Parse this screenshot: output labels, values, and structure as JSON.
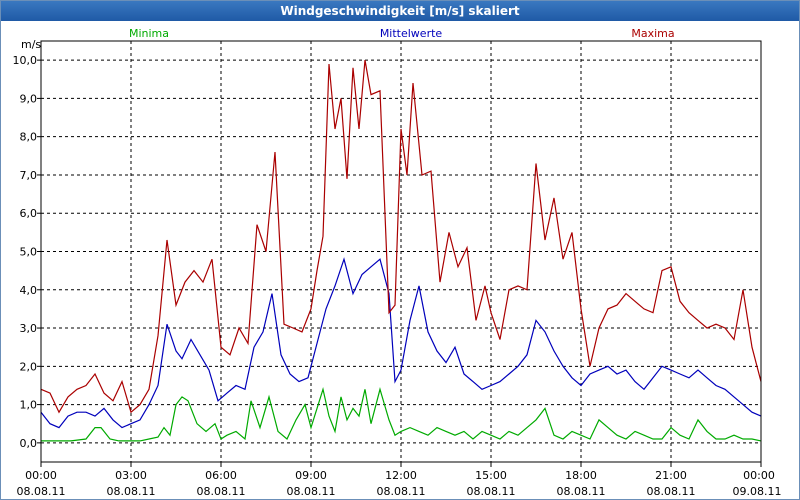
{
  "chart_data": {
    "type": "line",
    "title": "Windgeschwindigkeit [m/s] skaliert",
    "ylabel": "m/s",
    "ylim": [
      -0.5,
      10.5
    ],
    "yticks": [
      0,
      1,
      2,
      3,
      4,
      5,
      6,
      7,
      8,
      9,
      10
    ],
    "ytick_labels": [
      "0,0",
      "1,0",
      "2,0",
      "3,0",
      "4,0",
      "5,0",
      "6,0",
      "7,0",
      "8,0",
      "9,0",
      "10,0"
    ],
    "xlim": [
      0,
      24
    ],
    "xticks": [
      {
        "value": 0,
        "time": "00:00",
        "date": "08.08.11"
      },
      {
        "value": 3,
        "time": "03:00",
        "date": "08.08.11"
      },
      {
        "value": 6,
        "time": "06:00",
        "date": "08.08.11"
      },
      {
        "value": 9,
        "time": "09:00",
        "date": "08.08.11"
      },
      {
        "value": 12,
        "time": "12:00",
        "date": "08.08.11"
      },
      {
        "value": 15,
        "time": "15:00",
        "date": "08.08.11"
      },
      {
        "value": 18,
        "time": "18:00",
        "date": "08.08.11"
      },
      {
        "value": 21,
        "time": "21:00",
        "date": "08.08.11"
      },
      {
        "value": 24,
        "time": "00:00",
        "date": "09.08.11"
      }
    ],
    "series": [
      {
        "name": "Minima",
        "color": "#00aa00",
        "x": [
          0,
          0.5,
          1,
          1.5,
          1.8,
          2,
          2.3,
          2.6,
          3,
          3.3,
          3.6,
          3.9,
          4.1,
          4.3,
          4.5,
          4.7,
          4.9,
          5.2,
          5.5,
          5.8,
          6,
          6.2,
          6.5,
          6.8,
          7,
          7.3,
          7.6,
          7.9,
          8.2,
          8.5,
          8.8,
          9,
          9.2,
          9.4,
          9.6,
          9.8,
          10,
          10.2,
          10.4,
          10.6,
          10.8,
          11,
          11.3,
          11.6,
          11.8,
          12,
          12.3,
          12.6,
          12.9,
          13.2,
          13.5,
          13.8,
          14.1,
          14.4,
          14.7,
          15,
          15.3,
          15.6,
          15.9,
          16.2,
          16.5,
          16.8,
          17.1,
          17.4,
          17.7,
          18,
          18.3,
          18.6,
          18.9,
          19.2,
          19.5,
          19.8,
          20.1,
          20.4,
          20.7,
          21,
          21.3,
          21.6,
          21.9,
          22.2,
          22.5,
          22.8,
          23.1,
          23.4,
          23.7,
          24
        ],
        "values": [
          0.05,
          0.05,
          0.05,
          0.1,
          0.4,
          0.4,
          0.1,
          0.05,
          0.05,
          0.05,
          0.1,
          0.15,
          0.4,
          0.2,
          1.0,
          1.2,
          1.1,
          0.5,
          0.3,
          0.5,
          0.1,
          0.2,
          0.3,
          0.1,
          1.1,
          0.4,
          1.2,
          0.3,
          0.1,
          0.6,
          1.0,
          0.4,
          0.9,
          1.4,
          0.7,
          0.3,
          1.2,
          0.6,
          0.9,
          0.7,
          1.4,
          0.5,
          1.4,
          0.6,
          0.2,
          0.3,
          0.4,
          0.3,
          0.2,
          0.4,
          0.3,
          0.2,
          0.3,
          0.1,
          0.3,
          0.2,
          0.1,
          0.3,
          0.2,
          0.4,
          0.6,
          0.9,
          0.2,
          0.1,
          0.3,
          0.2,
          0.1,
          0.6,
          0.4,
          0.2,
          0.1,
          0.3,
          0.2,
          0.1,
          0.1,
          0.4,
          0.2,
          0.1,
          0.6,
          0.3,
          0.1,
          0.1,
          0.2,
          0.1,
          0.1,
          0.05
        ]
      },
      {
        "name": "Mittelwerte",
        "color": "#0000bb",
        "x": [
          0,
          0.3,
          0.6,
          0.9,
          1.2,
          1.5,
          1.8,
          2.1,
          2.4,
          2.7,
          3,
          3.3,
          3.6,
          3.9,
          4.2,
          4.5,
          4.7,
          5,
          5.3,
          5.6,
          5.9,
          6.2,
          6.5,
          6.8,
          7.1,
          7.4,
          7.7,
          8,
          8.3,
          8.6,
          8.9,
          9.2,
          9.5,
          9.8,
          10.1,
          10.4,
          10.7,
          11,
          11.3,
          11.6,
          11.8,
          12,
          12.3,
          12.6,
          12.9,
          13.2,
          13.5,
          13.8,
          14.1,
          14.4,
          14.7,
          15,
          15.3,
          15.6,
          15.9,
          16.2,
          16.5,
          16.8,
          17.1,
          17.4,
          17.7,
          18,
          18.3,
          18.6,
          18.9,
          19.2,
          19.5,
          19.8,
          20.1,
          20.4,
          20.7,
          21,
          21.3,
          21.6,
          21.9,
          22.2,
          22.5,
          22.8,
          23.1,
          23.4,
          23.7,
          24
        ],
        "values": [
          0.8,
          0.5,
          0.4,
          0.7,
          0.8,
          0.8,
          0.7,
          0.9,
          0.6,
          0.4,
          0.5,
          0.6,
          1.0,
          1.5,
          3.1,
          2.4,
          2.2,
          2.7,
          2.3,
          1.9,
          1.1,
          1.3,
          1.5,
          1.4,
          2.5,
          2.9,
          3.9,
          2.3,
          1.8,
          1.6,
          1.7,
          2.6,
          3.5,
          4.1,
          4.8,
          3.9,
          4.4,
          4.6,
          4.8,
          3.9,
          1.6,
          1.9,
          3.2,
          4.1,
          2.9,
          2.4,
          2.1,
          2.5,
          1.8,
          1.6,
          1.4,
          1.5,
          1.6,
          1.8,
          2.0,
          2.3,
          3.2,
          2.9,
          2.4,
          2.0,
          1.7,
          1.5,
          1.8,
          1.9,
          2.0,
          1.8,
          1.9,
          1.6,
          1.4,
          1.7,
          2.0,
          1.9,
          1.8,
          1.7,
          1.9,
          1.7,
          1.5,
          1.4,
          1.2,
          1.0,
          0.8,
          0.7
        ]
      },
      {
        "name": "Maxima",
        "color": "#aa0000",
        "x": [
          0,
          0.3,
          0.6,
          0.9,
          1.2,
          1.5,
          1.8,
          2.1,
          2.4,
          2.7,
          3,
          3.3,
          3.6,
          3.9,
          4.2,
          4.5,
          4.8,
          5.1,
          5.4,
          5.7,
          6,
          6.3,
          6.6,
          6.9,
          7.2,
          7.5,
          7.8,
          8.1,
          8.4,
          8.7,
          9,
          9.2,
          9.4,
          9.6,
          9.8,
          10,
          10.2,
          10.4,
          10.6,
          10.8,
          11,
          11.3,
          11.6,
          11.8,
          12,
          12.2,
          12.4,
          12.7,
          13,
          13.3,
          13.6,
          13.9,
          14.2,
          14.5,
          14.8,
          15,
          15.3,
          15.6,
          15.9,
          16.2,
          16.5,
          16.8,
          17.1,
          17.4,
          17.7,
          18,
          18.3,
          18.6,
          18.9,
          19.2,
          19.5,
          19.8,
          20.1,
          20.4,
          20.7,
          21,
          21.3,
          21.6,
          21.9,
          22.2,
          22.5,
          22.8,
          23.1,
          23.4,
          23.7,
          24
        ],
        "values": [
          1.4,
          1.3,
          0.8,
          1.2,
          1.4,
          1.5,
          1.8,
          1.3,
          1.1,
          1.6,
          0.8,
          1.0,
          1.4,
          2.8,
          5.3,
          3.6,
          4.2,
          4.5,
          4.2,
          4.8,
          2.5,
          2.3,
          3.0,
          2.6,
          5.7,
          5.0,
          7.6,
          3.1,
          3.0,
          2.9,
          3.5,
          4.5,
          5.4,
          9.9,
          8.2,
          9.0,
          6.9,
          9.8,
          8.2,
          10.0,
          9.1,
          9.2,
          3.4,
          3.6,
          8.2,
          7.0,
          9.4,
          7.0,
          7.1,
          4.2,
          5.5,
          4.6,
          5.1,
          3.2,
          4.1,
          3.4,
          2.7,
          4.0,
          4.1,
          4.0,
          7.3,
          5.3,
          6.4,
          4.8,
          5.5,
          3.5,
          2.0,
          3.0,
          3.5,
          3.6,
          3.9,
          3.7,
          3.5,
          3.4,
          4.5,
          4.6,
          3.7,
          3.4,
          3.2,
          3.0,
          3.1,
          3.0,
          2.7,
          4.0,
          2.5,
          1.6
        ]
      }
    ]
  }
}
